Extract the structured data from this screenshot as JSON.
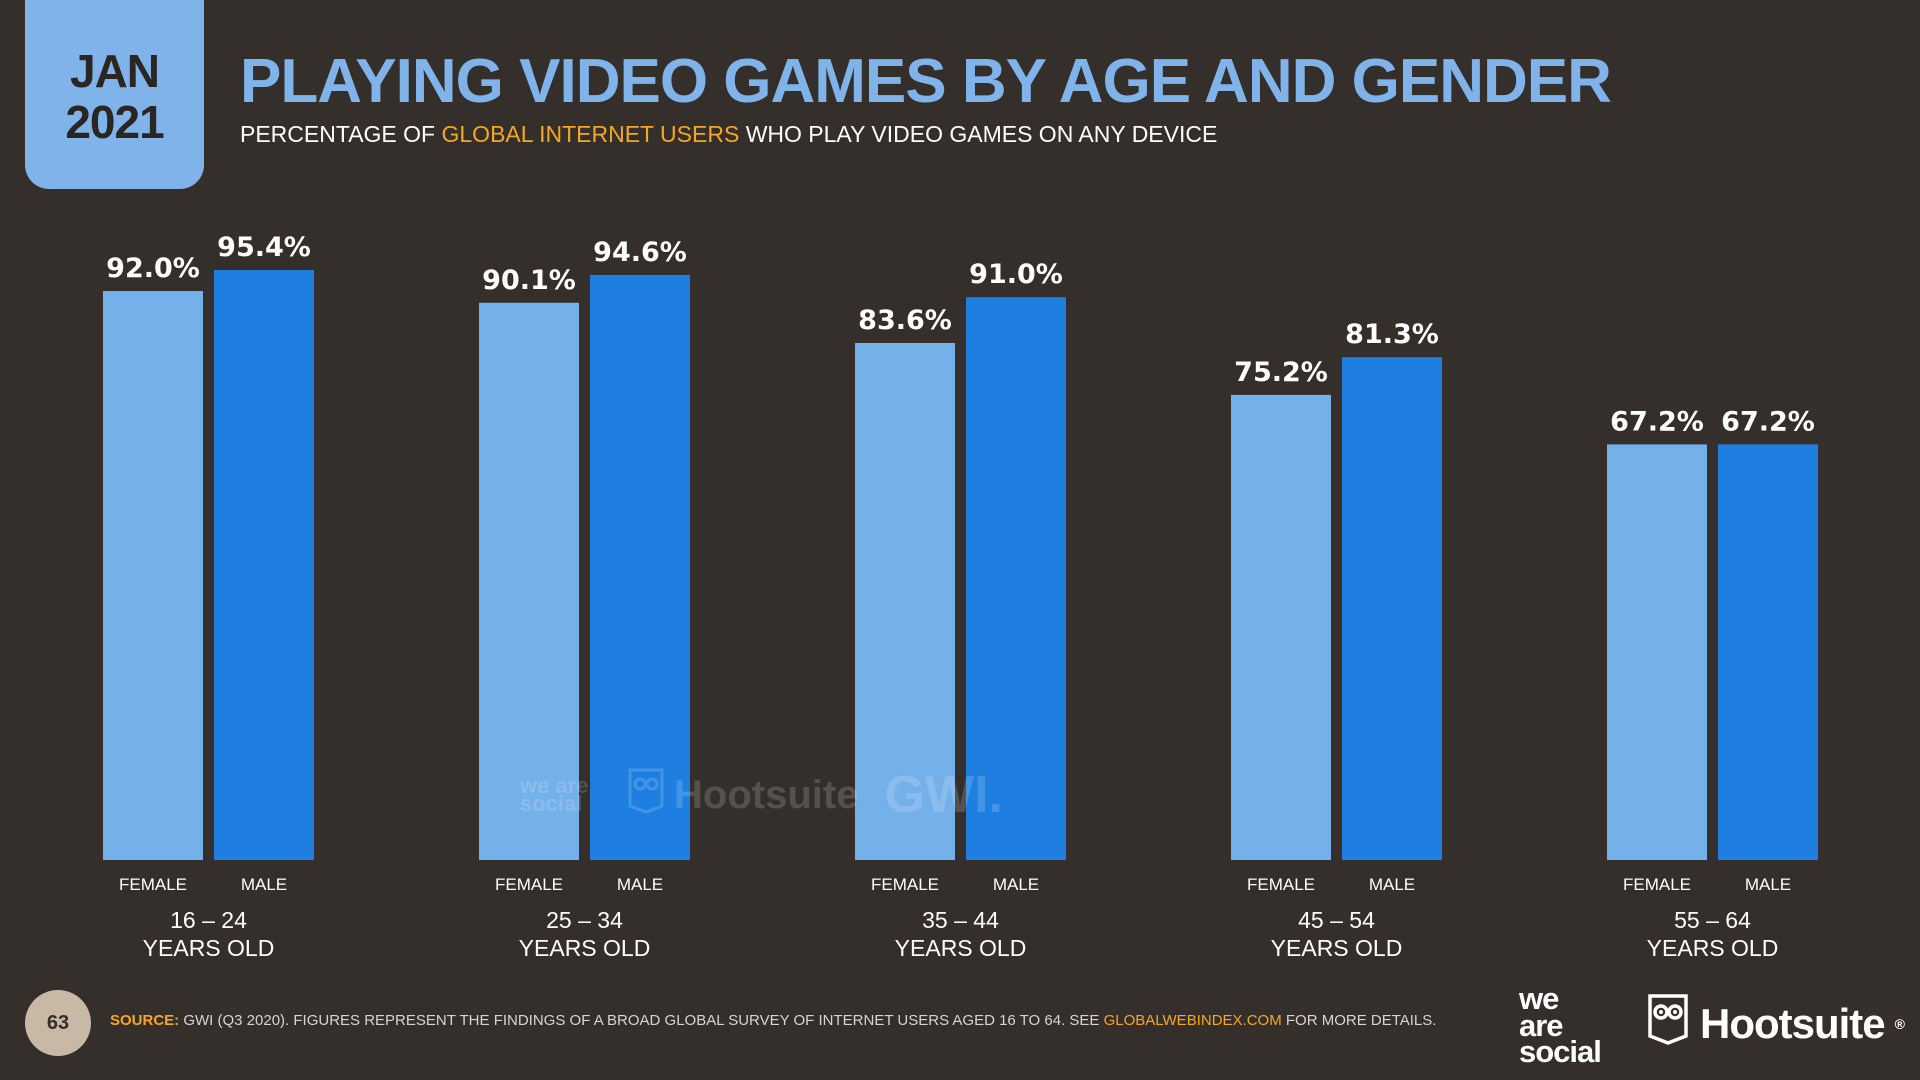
{
  "header": {
    "date_month": "JAN",
    "date_year": "2021",
    "title": "PLAYING VIDEO GAMES BY AGE AND GENDER",
    "subtitle_pre": "PERCENTAGE OF ",
    "subtitle_highlight": "GLOBAL INTERNET USERS",
    "subtitle_post": " WHO PLAY VIDEO GAMES ON ANY DEVICE"
  },
  "chart_data": {
    "type": "bar",
    "title": "PLAYING VIDEO GAMES BY AGE AND GENDER",
    "subtitle": "PERCENTAGE OF GLOBAL INTERNET USERS WHO PLAY VIDEO GAMES ON ANY DEVICE",
    "categories": [
      "16 – 24",
      "25 – 34",
      "35 – 44",
      "45 – 54",
      "55 – 64"
    ],
    "category_suffix": "YEARS OLD",
    "series": [
      {
        "name": "FEMALE",
        "color": "#74b1eb",
        "values": [
          92.0,
          90.1,
          83.6,
          75.2,
          67.2
        ]
      },
      {
        "name": "MALE",
        "color": "#1e7fe0",
        "values": [
          95.4,
          94.6,
          91.0,
          81.3,
          67.2
        ]
      }
    ],
    "value_format": "%",
    "grid": false,
    "legend": "none"
  },
  "watermark": {
    "brand1": "we are social",
    "brand2": "Hootsuite",
    "brand3": "GWI."
  },
  "footer": {
    "page_number": "63",
    "source_label": "SOURCE:",
    "source_text": " GWI (Q3 2020). FIGURES REPRESENT THE FINDINGS OF A BROAD GLOBAL SURVEY OF INTERNET USERS AGED 16 TO 64. SEE ",
    "source_link": "GLOBALWEBINDEX.COM",
    "source_end": " FOR MORE DETAILS.",
    "logo_was_1": "we",
    "logo_was_2": "are",
    "logo_was_3": "social",
    "logo_hootsuite": "Hootsuite",
    "logo_hootsuite_mark": "®"
  }
}
